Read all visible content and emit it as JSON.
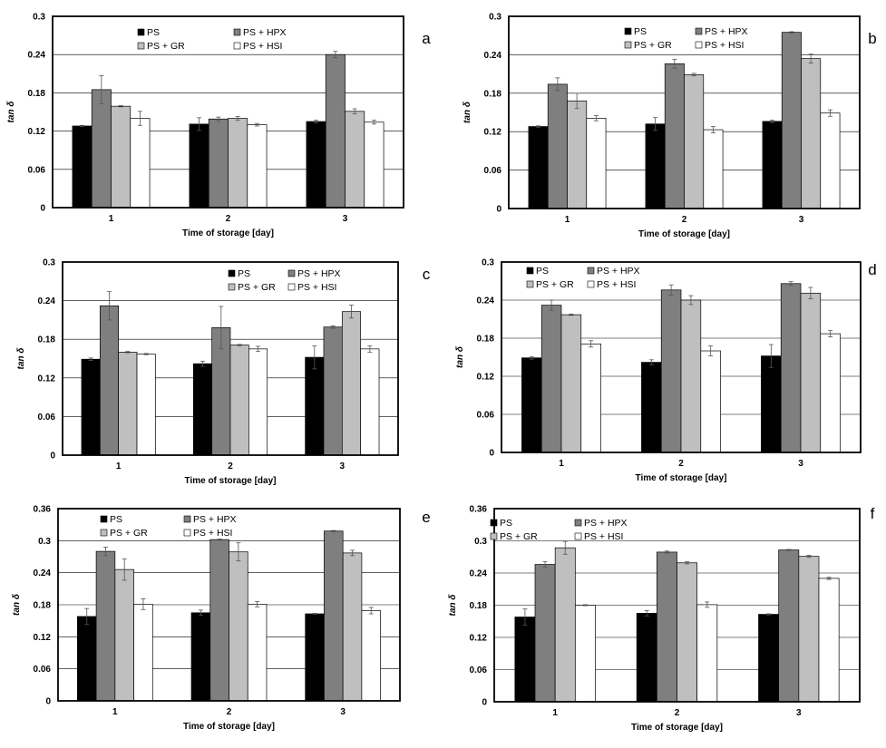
{
  "figure": {
    "colors": {
      "PS": "#000000",
      "PS + HPX": "#7f7f7f",
      "PS + GR": "#bfbfbf",
      "PS + HSI": "#ffffff",
      "grid": "#000000",
      "frame": "#000000"
    }
  },
  "chart_data": [
    {
      "panel": "a",
      "type": "bar",
      "xlabel": "Time of storage [day]",
      "ylabel": "tan δ",
      "categories": [
        "1",
        "2",
        "3"
      ],
      "ylim": [
        0,
        0.3
      ],
      "yticks": [
        "0",
        "0.06",
        "0.12",
        "0.18",
        "0.24",
        "0.3"
      ],
      "legend_position": "top-center",
      "series": [
        {
          "name": "PS",
          "values": [
            0.128,
            0.131,
            0.135
          ],
          "errors": [
            0.001,
            0.01,
            0.002
          ]
        },
        {
          "name": "PS + HPX",
          "values": [
            0.185,
            0.139,
            0.24
          ],
          "errors": [
            0.022,
            0.003,
            0.005
          ]
        },
        {
          "name": "PS + GR",
          "values": [
            0.159,
            0.14,
            0.151
          ],
          "errors": [
            0.001,
            0.003,
            0.004
          ]
        },
        {
          "name": "PS + HSI",
          "values": [
            0.14,
            0.13,
            0.134
          ],
          "errors": [
            0.011,
            0.002,
            0.003
          ]
        }
      ]
    },
    {
      "panel": "b",
      "type": "bar",
      "xlabel": "Time of storage [day]",
      "ylabel": "tan δ",
      "categories": [
        "1",
        "2",
        "3"
      ],
      "ylim": [
        0,
        0.3
      ],
      "yticks": [
        "0",
        "0.06",
        "0.12",
        "0.18",
        "0.24",
        "0.3"
      ],
      "legend_position": "top-right",
      "series": [
        {
          "name": "PS",
          "values": [
            0.128,
            0.132,
            0.136
          ],
          "errors": [
            0.001,
            0.01,
            0.002
          ]
        },
        {
          "name": "PS + HPX",
          "values": [
            0.194,
            0.226,
            0.275
          ],
          "errors": [
            0.01,
            0.007,
            0.001
          ]
        },
        {
          "name": "PS + GR",
          "values": [
            0.168,
            0.209,
            0.234
          ],
          "errors": [
            0.012,
            0.002,
            0.007
          ]
        },
        {
          "name": "PS + HSI",
          "values": [
            0.141,
            0.123,
            0.149
          ],
          "errors": [
            0.004,
            0.005,
            0.005
          ]
        }
      ]
    },
    {
      "panel": "c",
      "type": "bar",
      "xlabel": "Time of storage [day]",
      "ylabel": "tan δ",
      "categories": [
        "1",
        "2",
        "3"
      ],
      "ylim": [
        0,
        0.3
      ],
      "yticks": [
        "0",
        "0.06",
        "0.12",
        "0.18",
        "0.24",
        "0.3"
      ],
      "legend_position": "top-right",
      "series": [
        {
          "name": "PS",
          "values": [
            0.149,
            0.142,
            0.152
          ],
          "errors": [
            0.002,
            0.004,
            0.018
          ]
        },
        {
          "name": "PS + HPX",
          "values": [
            0.232,
            0.198,
            0.199
          ],
          "errors": [
            0.022,
            0.033,
            0.002
          ]
        },
        {
          "name": "PS + GR",
          "values": [
            0.16,
            0.171,
            0.223
          ],
          "errors": [
            0.001,
            0.001,
            0.01
          ]
        },
        {
          "name": "PS + HSI",
          "values": [
            0.157,
            0.165,
            0.165
          ],
          "errors": [
            0.001,
            0.004,
            0.005
          ]
        }
      ]
    },
    {
      "panel": "d",
      "type": "bar",
      "xlabel": "Time of storage [day]",
      "ylabel": "tan δ",
      "categories": [
        "1",
        "2",
        "3"
      ],
      "ylim": [
        0,
        0.3
      ],
      "yticks": [
        "0",
        "0.06",
        "0.12",
        "0.18",
        "0.24",
        "0.3"
      ],
      "legend_position": "top-center",
      "series": [
        {
          "name": "PS",
          "values": [
            0.149,
            0.142,
            0.152
          ],
          "errors": [
            0.002,
            0.004,
            0.018
          ]
        },
        {
          "name": "PS + HPX",
          "values": [
            0.232,
            0.256,
            0.266
          ],
          "errors": [
            0.008,
            0.008,
            0.003
          ]
        },
        {
          "name": "PS + GR",
          "values": [
            0.217,
            0.24,
            0.251
          ],
          "errors": [
            0.001,
            0.007,
            0.009
          ]
        },
        {
          "name": "PS + HSI",
          "values": [
            0.171,
            0.16,
            0.187
          ],
          "errors": [
            0.005,
            0.008,
            0.005
          ]
        }
      ]
    },
    {
      "panel": "e",
      "type": "bar",
      "xlabel": "Time of storage [day]",
      "ylabel": "tan δ",
      "categories": [
        "1",
        "2",
        "3"
      ],
      "ylim": [
        0,
        0.36
      ],
      "yticks": [
        "0",
        "0.06",
        "0.12",
        "0.18",
        "0.24",
        "0.3",
        "0.36"
      ],
      "legend_position": "top-left",
      "series": [
        {
          "name": "PS",
          "values": [
            0.158,
            0.165,
            0.163
          ],
          "errors": [
            0.015,
            0.005,
            0.001
          ]
        },
        {
          "name": "PS + HPX",
          "values": [
            0.28,
            0.302,
            0.318
          ],
          "errors": [
            0.008,
            0.001,
            0.001
          ]
        },
        {
          "name": "PS + GR",
          "values": [
            0.246,
            0.279,
            0.277
          ],
          "errors": [
            0.02,
            0.017,
            0.005
          ]
        },
        {
          "name": "PS + HSI",
          "values": [
            0.181,
            0.181,
            0.169
          ],
          "errors": [
            0.01,
            0.005,
            0.006
          ]
        }
      ]
    },
    {
      "panel": "f",
      "type": "bar",
      "xlabel": "Time of storage [day]",
      "ylabel": "tan δ",
      "categories": [
        "1",
        "2",
        "3"
      ],
      "ylim": [
        0,
        0.36
      ],
      "yticks": [
        "0",
        "0.06",
        "0.12",
        "0.18",
        "0.24",
        "0.3",
        "0.36"
      ],
      "legend_position": "top-left",
      "series": [
        {
          "name": "PS",
          "values": [
            0.158,
            0.165,
            0.163
          ],
          "errors": [
            0.015,
            0.005,
            0.001
          ]
        },
        {
          "name": "PS + HPX",
          "values": [
            0.256,
            0.279,
            0.283
          ],
          "errors": [
            0.005,
            0.002,
            0.001
          ]
        },
        {
          "name": "PS + GR",
          "values": [
            0.287,
            0.259,
            0.271
          ],
          "errors": [
            0.012,
            0.002,
            0.002
          ]
        },
        {
          "name": "PS + HSI",
          "values": [
            0.18,
            0.181,
            0.23
          ],
          "errors": [
            0.001,
            0.005,
            0.002
          ]
        }
      ]
    }
  ]
}
